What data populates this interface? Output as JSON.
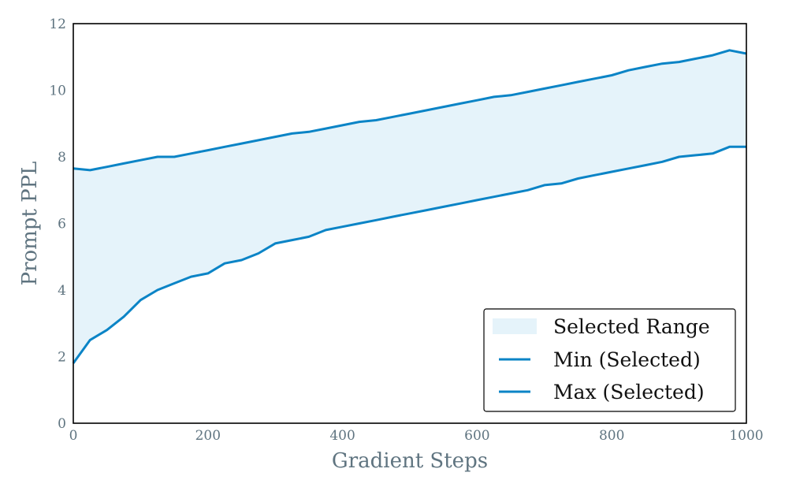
{
  "chart_data": {
    "type": "area",
    "xlabel": "Gradient Steps",
    "ylabel": "Prompt PPL",
    "xlim": [
      0,
      1000
    ],
    "ylim": [
      0,
      12
    ],
    "xticks": [
      0,
      200,
      400,
      600,
      800,
      1000
    ],
    "yticks": [
      0,
      2,
      4,
      6,
      8,
      10,
      12
    ],
    "grid": false,
    "legend_position": "bottom-right",
    "legend": [
      "Selected Range",
      "Min (Selected)",
      "Max (Selected)"
    ],
    "x": [
      0,
      25,
      50,
      75,
      100,
      125,
      150,
      175,
      200,
      225,
      250,
      275,
      300,
      325,
      350,
      375,
      400,
      425,
      450,
      475,
      500,
      525,
      550,
      575,
      600,
      625,
      650,
      675,
      700,
      725,
      750,
      775,
      800,
      825,
      850,
      875,
      900,
      925,
      950,
      975,
      1000
    ],
    "series": [
      {
        "name": "Min (Selected)",
        "color": "#0b84c6",
        "values": [
          1.8,
          2.5,
          2.8,
          3.2,
          3.7,
          4.0,
          4.2,
          4.4,
          4.5,
          4.8,
          4.9,
          5.1,
          5.4,
          5.5,
          5.6,
          5.8,
          5.9,
          6.0,
          6.1,
          6.2,
          6.3,
          6.4,
          6.5,
          6.6,
          6.7,
          6.8,
          6.9,
          7.0,
          7.15,
          7.2,
          7.35,
          7.45,
          7.55,
          7.65,
          7.75,
          7.85,
          8.0,
          8.05,
          8.1,
          8.3,
          8.3
        ]
      },
      {
        "name": "Max (Selected)",
        "color": "#0b84c6",
        "values": [
          7.65,
          7.6,
          7.7,
          7.8,
          7.9,
          8.0,
          8.0,
          8.1,
          8.2,
          8.3,
          8.4,
          8.5,
          8.6,
          8.7,
          8.75,
          8.85,
          8.95,
          9.05,
          9.1,
          9.2,
          9.3,
          9.4,
          9.5,
          9.6,
          9.7,
          9.8,
          9.85,
          9.95,
          10.05,
          10.15,
          10.25,
          10.35,
          10.45,
          10.6,
          10.7,
          10.8,
          10.85,
          10.95,
          11.05,
          11.2,
          11.1
        ]
      }
    ],
    "fill_color": "#e5f3fa"
  }
}
